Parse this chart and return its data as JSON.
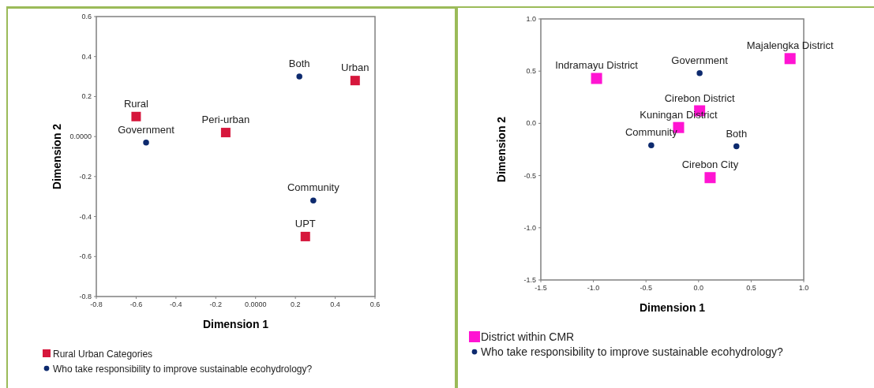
{
  "chart_data": [
    {
      "type": "scatter",
      "xlabel": "Dimension 1",
      "ylabel": "Dimension 2",
      "xlim": [
        -0.8,
        0.6
      ],
      "ylim": [
        -0.8,
        0.6
      ],
      "xticks": [
        -0.8,
        -0.6,
        -0.4,
        -0.2,
        {
          "value": 0,
          "label": "0.0000"
        },
        0.2,
        0.4,
        0.6
      ],
      "yticks": [
        -0.8,
        -0.6,
        -0.4,
        -0.2,
        {
          "value": 0,
          "label": "0.0000"
        },
        0.2,
        0.4,
        0.6
      ],
      "grid": false,
      "legend": "bottom left",
      "series": [
        {
          "name": "Rural Urban Categories",
          "color": "#d6173c",
          "marker": "square",
          "x": [
            -0.6,
            -0.15,
            0.5,
            0.25
          ],
          "values": [
            0.1,
            0.02,
            0.28,
            -0.5
          ]
        },
        {
          "name": "Who take responsibility to improve sustainable ecohydrology?",
          "color": "#0d2a6e",
          "marker": "circle",
          "x": [
            -0.55,
            0.22,
            0.29
          ],
          "values": [
            -0.03,
            0.3,
            -0.32
          ]
        }
      ],
      "annotations": [
        {
          "text": "Rural",
          "x": -0.6,
          "y": 0.1
        },
        {
          "text": "Peri-urban",
          "x": -0.15,
          "y": 0.02
        },
        {
          "text": "Urban",
          "x": 0.5,
          "y": 0.28
        },
        {
          "text": "UPT",
          "x": 0.25,
          "y": -0.5
        },
        {
          "text": "Government",
          "x": -0.55,
          "y": -0.03
        },
        {
          "text": "Both",
          "x": 0.22,
          "y": 0.3
        },
        {
          "text": "Community",
          "x": 0.29,
          "y": -0.32
        }
      ]
    },
    {
      "type": "scatter",
      "xlabel": "Dimension 1",
      "ylabel": "Dimension 2",
      "xlim": [
        -1.5,
        1.0
      ],
      "ylim": [
        -1.5,
        1.0
      ],
      "xticks": [
        -1.5,
        {
          "value": -1,
          "label": "-1.0"
        },
        -0.5,
        {
          "value": 0,
          "label": "0.0"
        },
        0.5,
        {
          "value": 1,
          "label": "1.0"
        }
      ],
      "yticks": [
        -1.5,
        {
          "value": -1,
          "label": "-1.0"
        },
        -0.5,
        {
          "value": 0,
          "label": "0.0"
        },
        0.5,
        {
          "value": 1,
          "label": "1.0"
        }
      ],
      "grid": false,
      "legend": "bottom left",
      "series": [
        {
          "name": "District within CMR",
          "color": "#ff14d2",
          "marker": "square",
          "x": [
            -0.97,
            0.87,
            0.01,
            -0.19,
            0.11
          ],
          "values": [
            0.43,
            0.62,
            0.12,
            -0.04,
            -0.52
          ]
        },
        {
          "name": "Who take responsibility to improve sustainable ecohydrology?",
          "color": "#0d2a6e",
          "marker": "circle",
          "x": [
            0.01,
            -0.45,
            0.36
          ],
          "values": [
            0.48,
            -0.21,
            -0.22
          ]
        }
      ],
      "annotations": [
        {
          "text": "Indramayu District",
          "x": -0.97,
          "y": 0.43
        },
        {
          "text": "Majalengka District",
          "x": 0.87,
          "y": 0.62
        },
        {
          "text": "Cirebon District",
          "x": 0.01,
          "y": 0.12
        },
        {
          "text": "Kuningan District",
          "x": -0.19,
          "y": -0.04
        },
        {
          "text": "Cirebon City",
          "x": 0.11,
          "y": -0.52
        },
        {
          "text": "Government",
          "x": 0.01,
          "y": 0.48
        },
        {
          "text": "Community",
          "x": -0.45,
          "y": -0.21
        },
        {
          "text": "Both",
          "x": 0.36,
          "y": -0.22
        }
      ]
    }
  ]
}
